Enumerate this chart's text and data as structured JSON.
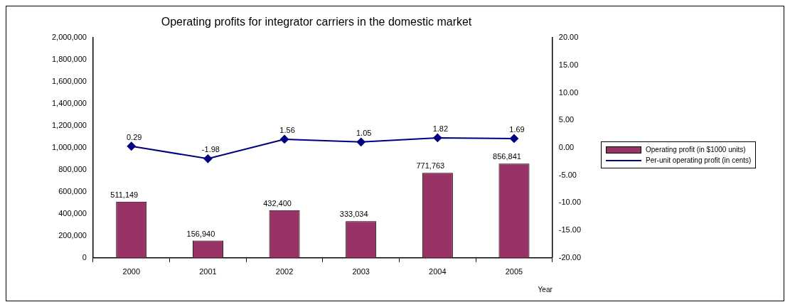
{
  "chart_data": {
    "type": "bar",
    "title": "Operating profits for integrator carriers in the domestic market",
    "xlabel": "Year",
    "categories": [
      "2000",
      "2001",
      "2002",
      "2003",
      "2004",
      "2005"
    ],
    "series": [
      {
        "name": "Operating profit (in $1000 units)",
        "color": "#993366",
        "values": [
          511149,
          156940,
          432400,
          333034,
          771763,
          856841
        ],
        "value_labels": [
          "511,149",
          "156,940",
          "432,400",
          "333,034",
          "771,763",
          "856,841"
        ]
      },
      {
        "name": "Per-unit operating profit (in cents)",
        "type": "line",
        "axis": "y2",
        "color": "#000080",
        "marker": "diamond",
        "values": [
          0.29,
          -1.98,
          1.56,
          1.05,
          1.82,
          1.69
        ]
      }
    ],
    "ylim": [
      0,
      2000000
    ],
    "yticks": [
      {
        "value": 0,
        "label": "0"
      },
      {
        "value": 200000,
        "label": "200,000"
      },
      {
        "value": 400000,
        "label": "400,000"
      },
      {
        "value": 600000,
        "label": "600,000"
      },
      {
        "value": 800000,
        "label": "800,000"
      },
      {
        "value": 1000000,
        "label": "1,000,000"
      },
      {
        "value": 1200000,
        "label": "1,200,000"
      },
      {
        "value": 1400000,
        "label": "1,400,000"
      },
      {
        "value": 1600000,
        "label": "1,600,000"
      },
      {
        "value": 1800000,
        "label": "1,800,000"
      },
      {
        "value": 2000000,
        "label": "2,000,000"
      }
    ],
    "y2lim": [
      -20,
      20
    ],
    "y2ticks": [
      {
        "value": -20,
        "label": "-20.00"
      },
      {
        "value": -15,
        "label": "-15.00"
      },
      {
        "value": -10,
        "label": "-10.00"
      },
      {
        "value": -5,
        "label": "-5.00"
      },
      {
        "value": 0,
        "label": "0.00"
      },
      {
        "value": 5,
        "label": "5.00"
      },
      {
        "value": 10,
        "label": "10.00"
      },
      {
        "value": 15,
        "label": "15.00"
      },
      {
        "value": 20,
        "label": "20.00"
      }
    ],
    "grid": false,
    "legend": "right",
    "data_labels": true
  }
}
